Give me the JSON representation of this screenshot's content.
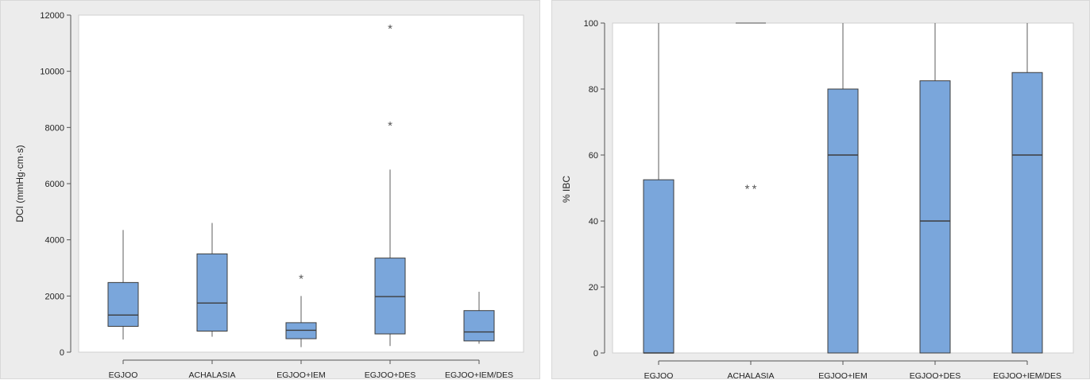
{
  "colors": {
    "box_fill": "#7aa6db",
    "box_stroke": "#3c3c3c",
    "panel_bg": "#ececec",
    "plot_bg": "#ffffff"
  },
  "chart_data": [
    {
      "type": "boxplot",
      "ylabel": "DCI (mmHg·cm·s)",
      "ylim": [
        0,
        12000
      ],
      "yticks": [
        0,
        2000,
        4000,
        6000,
        8000,
        10000,
        12000
      ],
      "categories": [
        "EGJOO",
        "ACHALASIA",
        "EGJOO+IEM",
        "EGJOO+DES",
        "EGJOO+IEM/DES"
      ],
      "boxes": [
        {
          "min": 450,
          "q1": 920,
          "median": 1320,
          "q3": 2480,
          "max": 4350,
          "outliers": []
        },
        {
          "min": 550,
          "q1": 750,
          "median": 1750,
          "q3": 3500,
          "max": 4600,
          "outliers": []
        },
        {
          "min": 180,
          "q1": 480,
          "median": 780,
          "q3": 1050,
          "max": 2000,
          "outliers": [
            2650
          ]
        },
        {
          "min": 220,
          "q1": 650,
          "median": 1980,
          "q3": 3350,
          "max": 6500,
          "outliers": [
            8100,
            11550
          ]
        },
        {
          "min": 300,
          "q1": 400,
          "median": 720,
          "q3": 1480,
          "max": 2150,
          "outliers": []
        }
      ]
    },
    {
      "type": "boxplot",
      "ylabel": "% IBC",
      "ylim": [
        0,
        100
      ],
      "yticks": [
        0,
        20,
        40,
        60,
        80,
        100
      ],
      "categories": [
        "EGJOO",
        "ACHALASIA",
        "EGJOO+IEM",
        "EGJOO+DES",
        "EGJOO+IEM/DES"
      ],
      "boxes": [
        {
          "min": 0,
          "q1": 0,
          "median": 0,
          "q3": 52.5,
          "max": 100,
          "outliers": []
        },
        {
          "min": 100,
          "q1": 100,
          "median": 100,
          "q3": 100,
          "max": 100,
          "outliers": [
            50,
            50
          ]
        },
        {
          "min": 0,
          "q1": 0,
          "median": 60,
          "q3": 80,
          "max": 100,
          "outliers": []
        },
        {
          "min": 0,
          "q1": 0,
          "median": 40,
          "q3": 82.5,
          "max": 100,
          "outliers": []
        },
        {
          "min": 0,
          "q1": 0,
          "median": 60,
          "q3": 85,
          "max": 100,
          "outliers": []
        }
      ]
    }
  ]
}
